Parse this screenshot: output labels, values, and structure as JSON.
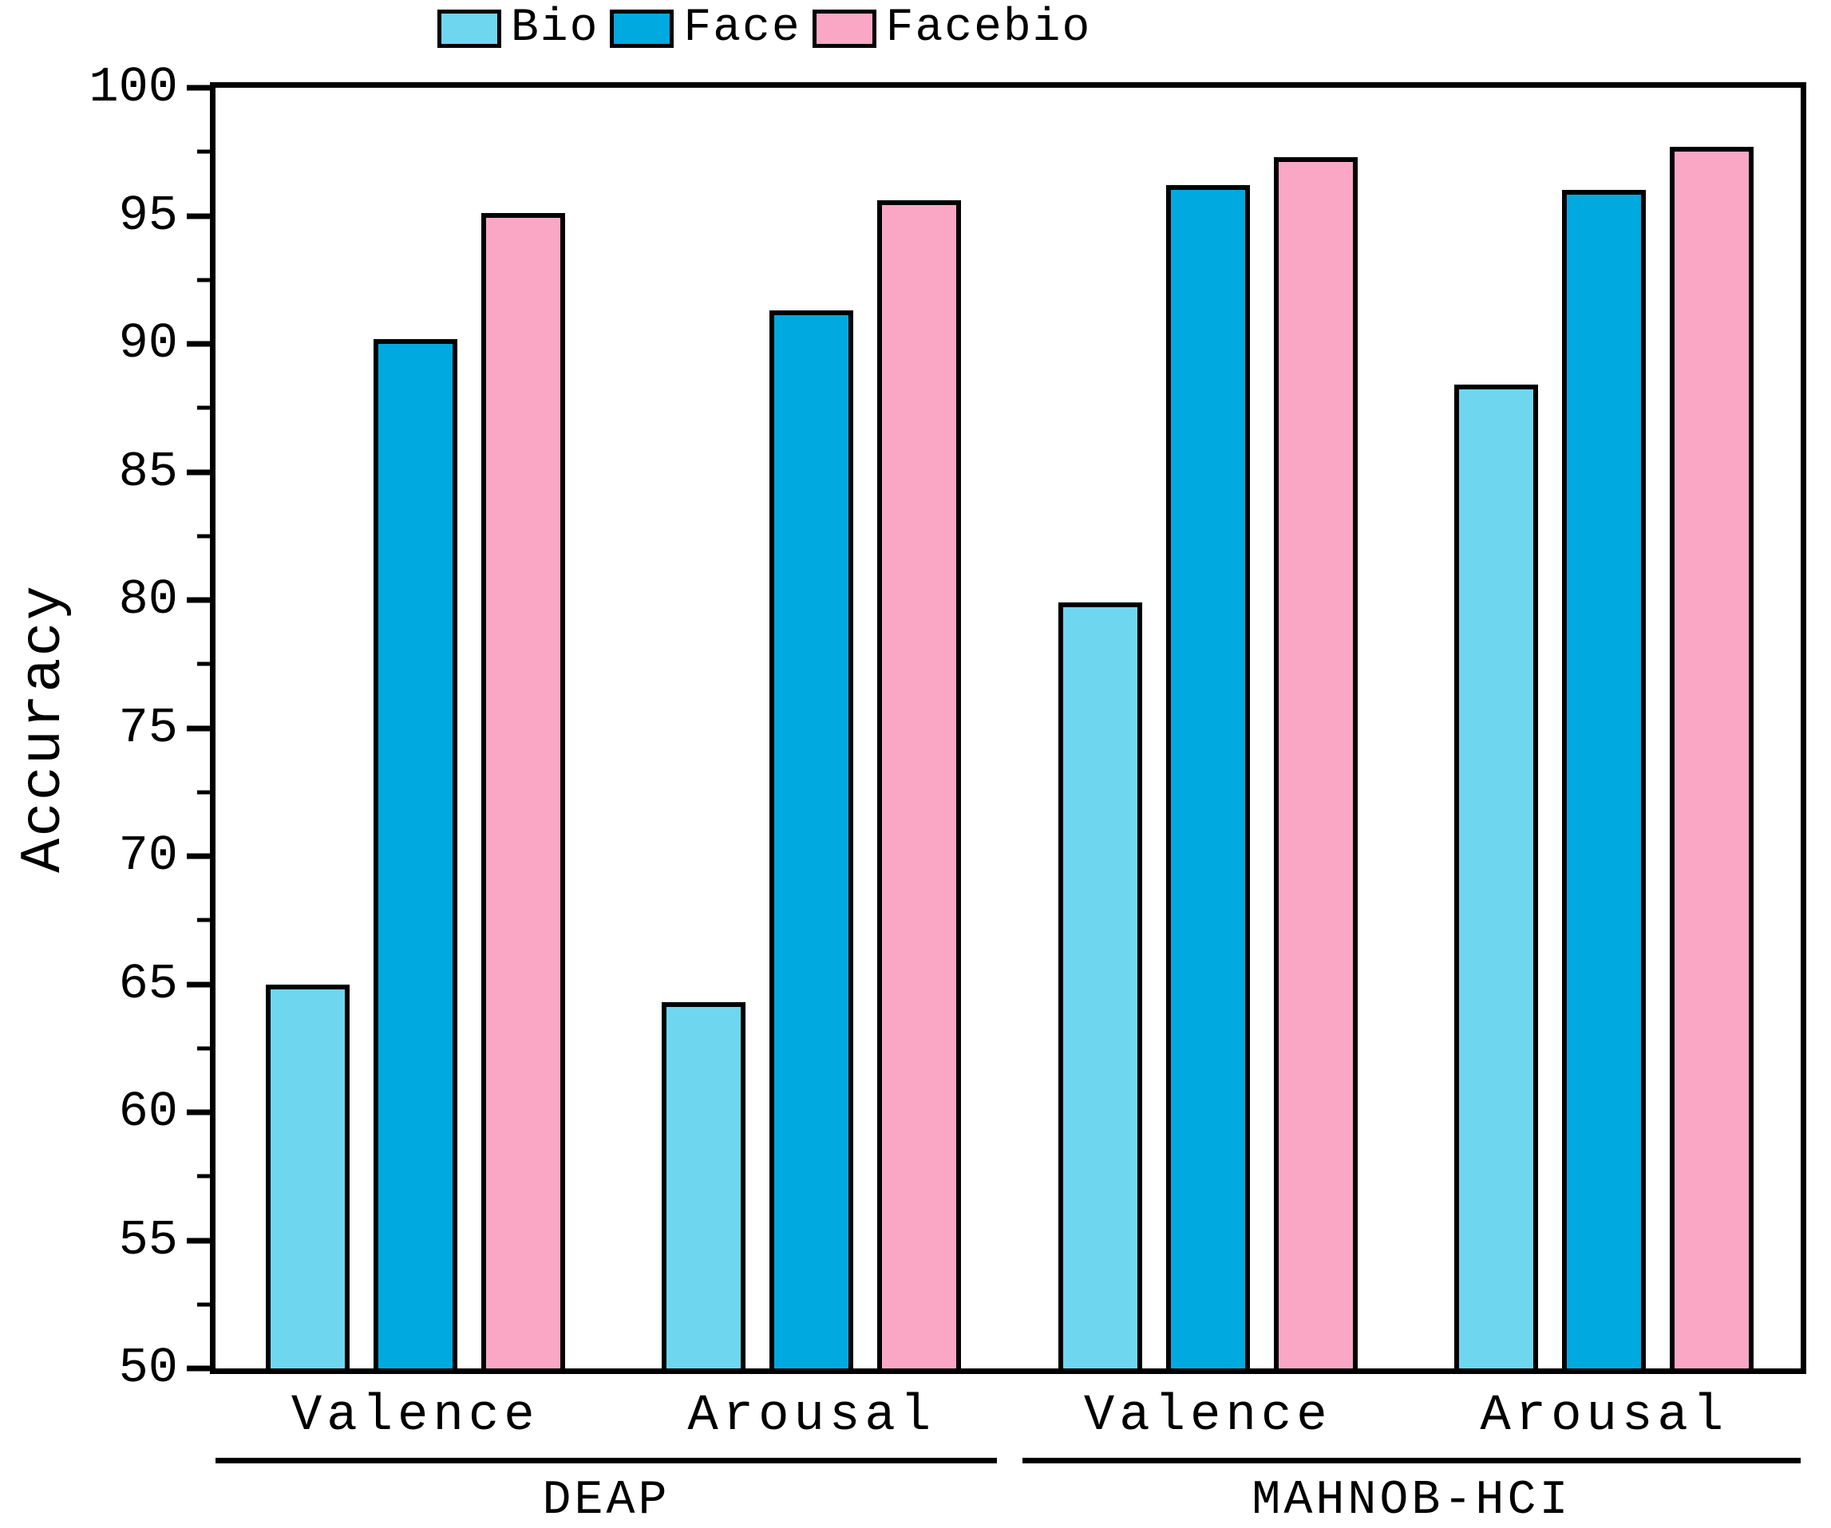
{
  "chart_data": {
    "type": "bar",
    "title": "",
    "xlabel": "",
    "ylabel": "Accuracy",
    "ylim": [
      50,
      100
    ],
    "yticks": [
      50,
      55,
      60,
      65,
      70,
      75,
      80,
      85,
      90,
      95,
      100
    ],
    "minor_tick_step": 2.5,
    "grid": false,
    "legend_position": "top-center",
    "categories": [
      "Valence",
      "Arousal",
      "Valence",
      "Arousal"
    ],
    "series": [
      {
        "name": "Bio",
        "color": "#6FD6F0",
        "values": [
          65.0,
          64.3,
          79.9,
          88.4
        ]
      },
      {
        "name": "Face",
        "color": "#00A9E0",
        "values": [
          90.2,
          91.3,
          96.2,
          96.0
        ]
      },
      {
        "name": "Facebio",
        "color": "#FAA7C6",
        "values": [
          95.1,
          95.6,
          97.3,
          97.7
        ]
      }
    ],
    "axis_groups": [
      {
        "label": "DEAP",
        "categories": [
          "Valence",
          "Arousal"
        ]
      },
      {
        "label": "MAHNOB-HCI",
        "categories": [
          "Valence",
          "Arousal"
        ]
      }
    ]
  },
  "legend": {
    "items": [
      {
        "label": "Bio"
      },
      {
        "label": "Face"
      },
      {
        "label": "Facebio"
      }
    ]
  }
}
